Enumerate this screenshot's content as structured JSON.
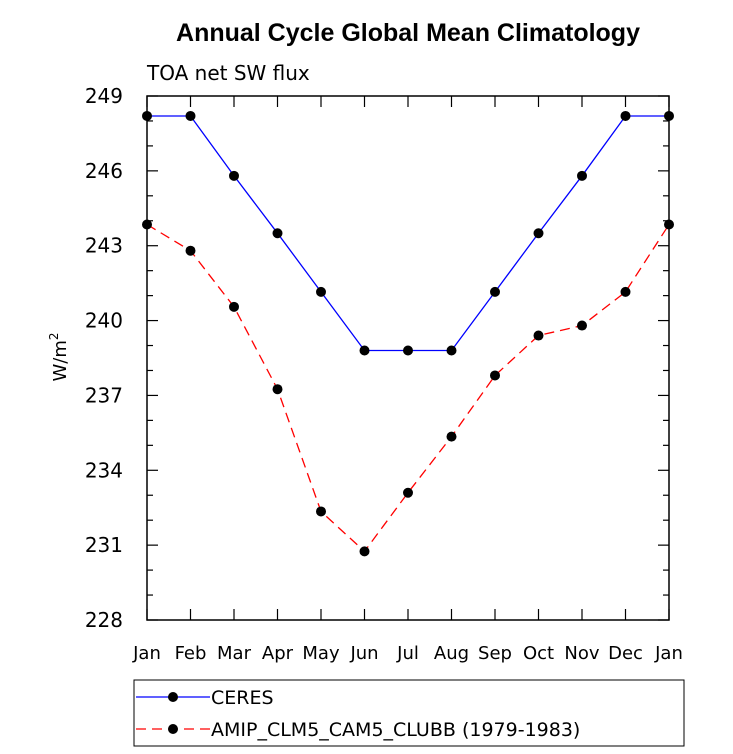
{
  "chart_data": {
    "type": "line",
    "title": "Annual Cycle Global Mean Climatology",
    "subtitle": "TOA net SW flux",
    "xlabel": "",
    "ylabel": "W/m",
    "ylabel_sup": "2",
    "categories": [
      "Jan",
      "Feb",
      "Mar",
      "Apr",
      "May",
      "Jun",
      "Jul",
      "Aug",
      "Sep",
      "Oct",
      "Nov",
      "Dec",
      "Jan"
    ],
    "ylim": [
      228,
      249
    ],
    "yticks": [
      228,
      231,
      234,
      237,
      240,
      243,
      246,
      249
    ],
    "grid": false,
    "legend_position": "bottom",
    "series": [
      {
        "name": "CERES",
        "color": "#0000ff",
        "dash": "solid",
        "values": [
          248.2,
          248.2,
          245.8,
          243.5,
          241.15,
          238.8,
          238.8,
          238.8,
          241.15,
          243.5,
          245.8,
          248.2,
          248.2
        ]
      },
      {
        "name": "AMIP_CLM5_CAM5_CLUBB (1979-1983)",
        "color": "#ff0000",
        "dash": "dashed",
        "values": [
          243.85,
          242.8,
          240.55,
          237.25,
          232.35,
          230.75,
          233.1,
          235.35,
          237.8,
          239.4,
          239.8,
          241.15,
          243.85
        ]
      }
    ]
  }
}
